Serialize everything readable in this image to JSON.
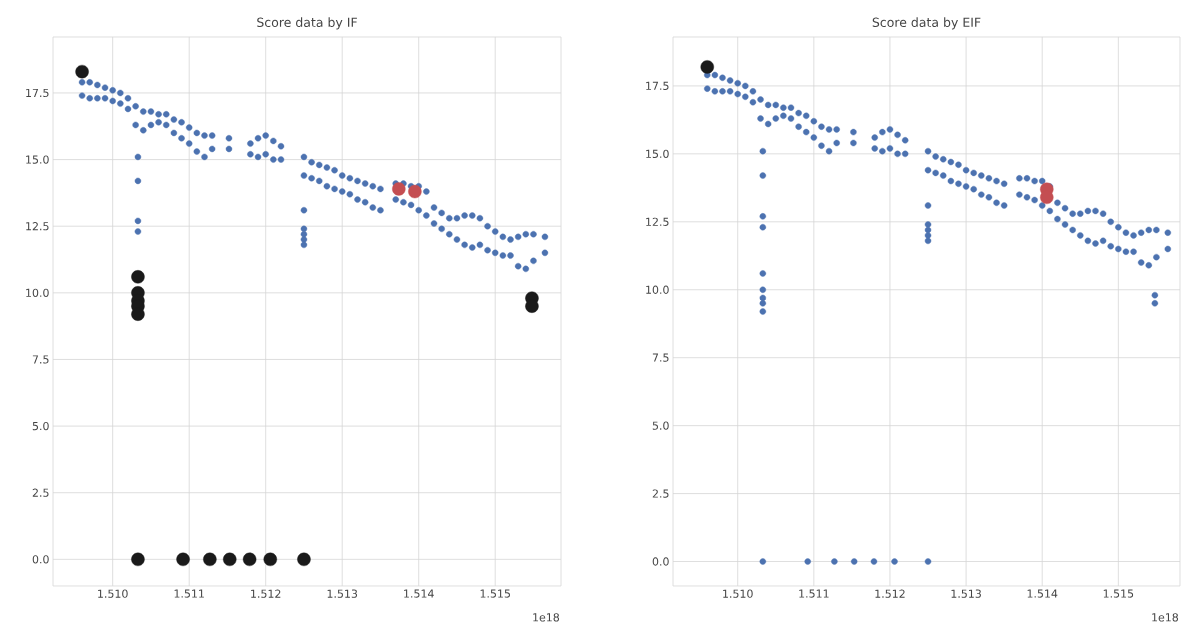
{
  "chart_data": [
    {
      "type": "scatter",
      "title": "Score data by IF",
      "annotations": [
        "1e18"
      ],
      "grid": true,
      "xlim": [
        1.50922,
        1.51586
      ],
      "ylim": [
        -1.0,
        19.6
      ],
      "xticks": [
        {
          "value": 1.51,
          "label": "1.510"
        },
        1.511,
        1.512,
        1.513,
        1.514,
        1.515
      ],
      "yticks": [
        {
          "value": 0,
          "label": "0.0"
        },
        2.5,
        {
          "value": 5,
          "label": "5.0"
        },
        7.5,
        {
          "value": 10,
          "label": "10.0"
        },
        12.5,
        {
          "value": 15,
          "label": "15.0"
        },
        17.5
      ],
      "series": [
        {
          "color": "#4c72b0",
          "marker": "circle",
          "x": [
            1.5096,
            1.5096,
            1.5097,
            1.5097,
            1.5098,
            1.5098,
            1.5099,
            1.5099,
            1.51,
            1.51,
            1.5101,
            1.5101,
            1.5102,
            1.5102,
            1.5103,
            1.5103,
            1.5104,
            1.5104,
            1.5105,
            1.5105,
            1.5106,
            1.5106,
            1.5107,
            1.5107,
            1.5108,
            1.5108,
            1.5109,
            1.5109,
            1.511,
            1.511,
            1.5111,
            1.5111,
            1.5112,
            1.5112,
            1.5113,
            1.5113,
            1.51152,
            1.51152,
            1.5118,
            1.5118,
            1.5119,
            1.5119,
            1.512,
            1.512,
            1.5121,
            1.5121,
            1.5122,
            1.5122,
            1.5125,
            1.5125,
            1.5126,
            1.5126,
            1.5127,
            1.5127,
            1.5128,
            1.5128,
            1.5129,
            1.5129,
            1.513,
            1.513,
            1.5131,
            1.5131,
            1.5132,
            1.5132,
            1.5133,
            1.5133,
            1.5134,
            1.5134,
            1.5135,
            1.5135,
            1.5137,
            1.5137,
            1.5138,
            1.5138,
            1.5139,
            1.5139,
            1.514,
            1.514,
            1.5141,
            1.5141,
            1.5142,
            1.5142,
            1.5143,
            1.5143,
            1.5144,
            1.5144,
            1.5145,
            1.5145,
            1.5146,
            1.5146,
            1.5147,
            1.5147,
            1.5148,
            1.5148,
            1.5149,
            1.5149,
            1.515,
            1.515,
            1.5151,
            1.5151,
            1.5152,
            1.5152,
            1.5153,
            1.5153,
            1.5154,
            1.5154,
            1.5155,
            1.5155,
            1.51565,
            1.51565,
            1.51033,
            1.51033,
            1.51033,
            1.51033,
            1.5125,
            1.5125,
            1.5125,
            1.5125,
            1.5125
          ],
          "values": [
            17.9,
            17.4,
            17.9,
            17.3,
            17.8,
            17.3,
            17.7,
            17.3,
            17.6,
            17.2,
            17.5,
            17.1,
            17.3,
            16.9,
            17.0,
            16.3,
            16.8,
            16.1,
            16.8,
            16.3,
            16.7,
            16.4,
            16.7,
            16.3,
            16.5,
            16.0,
            16.4,
            15.8,
            16.2,
            15.6,
            16.0,
            15.3,
            15.9,
            15.1,
            15.9,
            15.4,
            15.8,
            15.4,
            15.6,
            15.2,
            15.8,
            15.1,
            15.9,
            15.2,
            15.7,
            15.0,
            15.5,
            15.0,
            15.1,
            14.4,
            14.9,
            14.3,
            14.8,
            14.2,
            14.7,
            14.0,
            14.6,
            13.9,
            14.4,
            13.8,
            14.3,
            13.7,
            14.2,
            13.5,
            14.1,
            13.4,
            14.0,
            13.2,
            13.9,
            13.1,
            14.1,
            13.5,
            14.1,
            13.4,
            14.0,
            13.3,
            14.0,
            13.1,
            13.8,
            12.9,
            13.2,
            12.6,
            13.0,
            12.4,
            12.8,
            12.2,
            12.8,
            12.0,
            12.9,
            11.8,
            12.9,
            11.7,
            12.8,
            11.8,
            12.5,
            11.6,
            12.3,
            11.5,
            12.1,
            11.4,
            12.0,
            11.4,
            12.1,
            11.0,
            12.2,
            10.9,
            12.2,
            11.2,
            12.1,
            11.5,
            15.1,
            14.2,
            12.7,
            12.3,
            13.1,
            12.4,
            12.2,
            12.0,
            11.8
          ]
        },
        {
          "color": "#1a1a1a",
          "marker": "circle",
          "x": [
            1.5096,
            1.51033,
            1.51033,
            1.51033,
            1.51033,
            1.51033,
            1.51033,
            1.51092,
            1.51127,
            1.51153,
            1.51179,
            1.51206,
            1.5125,
            1.51548,
            1.51548
          ],
          "values": [
            18.3,
            10.6,
            10.0,
            9.7,
            9.5,
            9.2,
            0,
            0,
            0,
            0,
            0,
            0,
            0,
            9.8,
            9.5
          ]
        },
        {
          "color": "#c44e52",
          "marker": "circle",
          "x": [
            1.51374,
            1.51395
          ],
          "values": [
            13.9,
            13.8
          ]
        }
      ]
    },
    {
      "type": "scatter",
      "title": "Score data by EIF",
      "annotations": [
        "1e18"
      ],
      "grid": true,
      "xlim": [
        1.50915,
        1.51581
      ],
      "ylim": [
        -0.9,
        19.3
      ],
      "xticks": [
        {
          "value": 1.51,
          "label": "1.510"
        },
        1.511,
        1.512,
        1.513,
        1.514,
        1.515
      ],
      "yticks": [
        {
          "value": 0,
          "label": "0.0"
        },
        2.5,
        {
          "value": 5,
          "label": "5.0"
        },
        7.5,
        {
          "value": 10,
          "label": "10.0"
        },
        12.5,
        {
          "value": 15,
          "label": "15.0"
        },
        17.5
      ],
      "series": [
        {
          "color": "#4c72b0",
          "marker": "circle",
          "x": [
            1.5096,
            1.5096,
            1.5097,
            1.5097,
            1.5098,
            1.5098,
            1.5099,
            1.5099,
            1.51,
            1.51,
            1.5101,
            1.5101,
            1.5102,
            1.5102,
            1.5103,
            1.5103,
            1.5104,
            1.5104,
            1.5105,
            1.5105,
            1.5106,
            1.5106,
            1.5107,
            1.5107,
            1.5108,
            1.5108,
            1.5109,
            1.5109,
            1.511,
            1.511,
            1.5111,
            1.5111,
            1.5112,
            1.5112,
            1.5113,
            1.5113,
            1.51152,
            1.51152,
            1.5118,
            1.5118,
            1.5119,
            1.5119,
            1.512,
            1.512,
            1.5121,
            1.5121,
            1.5122,
            1.5122,
            1.5125,
            1.5125,
            1.5126,
            1.5126,
            1.5127,
            1.5127,
            1.5128,
            1.5128,
            1.5129,
            1.5129,
            1.513,
            1.513,
            1.5131,
            1.5131,
            1.5132,
            1.5132,
            1.5133,
            1.5133,
            1.5134,
            1.5134,
            1.5135,
            1.5135,
            1.5137,
            1.5137,
            1.5138,
            1.5138,
            1.5139,
            1.5139,
            1.514,
            1.514,
            1.5141,
            1.5141,
            1.5142,
            1.5142,
            1.5143,
            1.5143,
            1.5144,
            1.5144,
            1.5145,
            1.5145,
            1.5146,
            1.5146,
            1.5147,
            1.5147,
            1.5148,
            1.5148,
            1.5149,
            1.5149,
            1.515,
            1.515,
            1.5151,
            1.5151,
            1.5152,
            1.5152,
            1.5153,
            1.5153,
            1.5154,
            1.5154,
            1.5155,
            1.5155,
            1.51565,
            1.51565,
            1.51033,
            1.51033,
            1.51033,
            1.51033,
            1.5125,
            1.5125,
            1.5125,
            1.5125,
            1.5125,
            1.51033,
            1.51033,
            1.51033,
            1.51033,
            1.51033,
            1.51033,
            1.51092,
            1.51127,
            1.51153,
            1.51179,
            1.51206,
            1.5125,
            1.51548,
            1.51548
          ],
          "values": [
            17.9,
            17.4,
            17.9,
            17.3,
            17.8,
            17.3,
            17.7,
            17.3,
            17.6,
            17.2,
            17.5,
            17.1,
            17.3,
            16.9,
            17.0,
            16.3,
            16.8,
            16.1,
            16.8,
            16.3,
            16.7,
            16.4,
            16.7,
            16.3,
            16.5,
            16.0,
            16.4,
            15.8,
            16.2,
            15.6,
            16.0,
            15.3,
            15.9,
            15.1,
            15.9,
            15.4,
            15.8,
            15.4,
            15.6,
            15.2,
            15.8,
            15.1,
            15.9,
            15.2,
            15.7,
            15.0,
            15.5,
            15.0,
            15.1,
            14.4,
            14.9,
            14.3,
            14.8,
            14.2,
            14.7,
            14.0,
            14.6,
            13.9,
            14.4,
            13.8,
            14.3,
            13.7,
            14.2,
            13.5,
            14.1,
            13.4,
            14.0,
            13.2,
            13.9,
            13.1,
            14.1,
            13.5,
            14.1,
            13.4,
            14.0,
            13.3,
            14.0,
            13.1,
            13.8,
            12.9,
            13.2,
            12.6,
            13.0,
            12.4,
            12.8,
            12.2,
            12.8,
            12.0,
            12.9,
            11.8,
            12.9,
            11.7,
            12.8,
            11.8,
            12.5,
            11.6,
            12.3,
            11.5,
            12.1,
            11.4,
            12.0,
            11.4,
            12.1,
            11.0,
            12.2,
            10.9,
            12.2,
            11.2,
            12.1,
            11.5,
            15.1,
            14.2,
            12.7,
            12.3,
            13.1,
            12.4,
            12.2,
            12.0,
            11.8,
            10.6,
            10.0,
            9.7,
            9.5,
            9.2,
            0,
            0,
            0,
            0,
            0,
            0,
            0,
            9.8,
            9.5
          ]
        },
        {
          "color": "#1a1a1a",
          "marker": "circle",
          "x": [
            1.5096
          ],
          "values": [
            18.2
          ]
        },
        {
          "color": "#c44e52",
          "marker": "circle",
          "x": [
            1.51406,
            1.51406
          ],
          "values": [
            13.7,
            13.4
          ]
        }
      ]
    }
  ]
}
